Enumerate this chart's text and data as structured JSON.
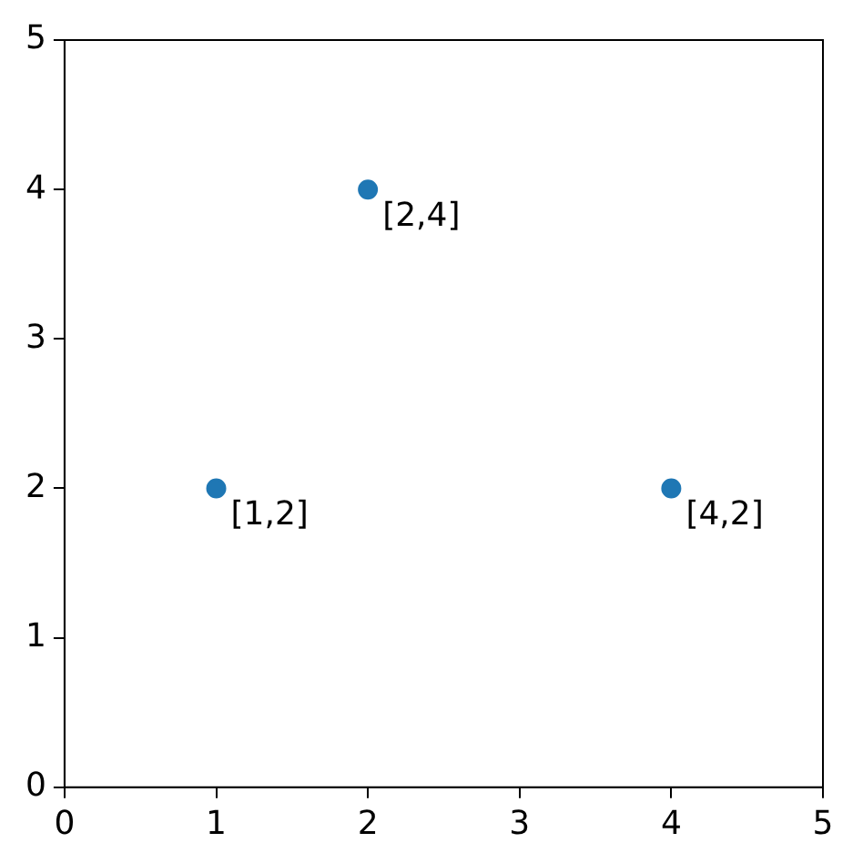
{
  "chart_data": {
    "type": "scatter",
    "x": [
      1,
      2,
      4
    ],
    "series": [
      {
        "color": "#1f77b4",
        "values": [
          2,
          4,
          2
        ]
      }
    ],
    "xlim": [
      0,
      5
    ],
    "xticks": [
      0,
      1,
      2,
      3,
      4,
      5
    ],
    "ylim": [
      0,
      5
    ],
    "yticks": [
      0,
      1,
      2,
      3,
      4,
      5
    ],
    "grid": false,
    "legend": false,
    "marker": "circle",
    "annotations": [
      {
        "text": "[1,2]",
        "x": 1,
        "y": 2
      },
      {
        "text": "[2,4]",
        "x": 2,
        "y": 4
      },
      {
        "text": "[4,2]",
        "x": 4,
        "y": 2
      }
    ]
  }
}
